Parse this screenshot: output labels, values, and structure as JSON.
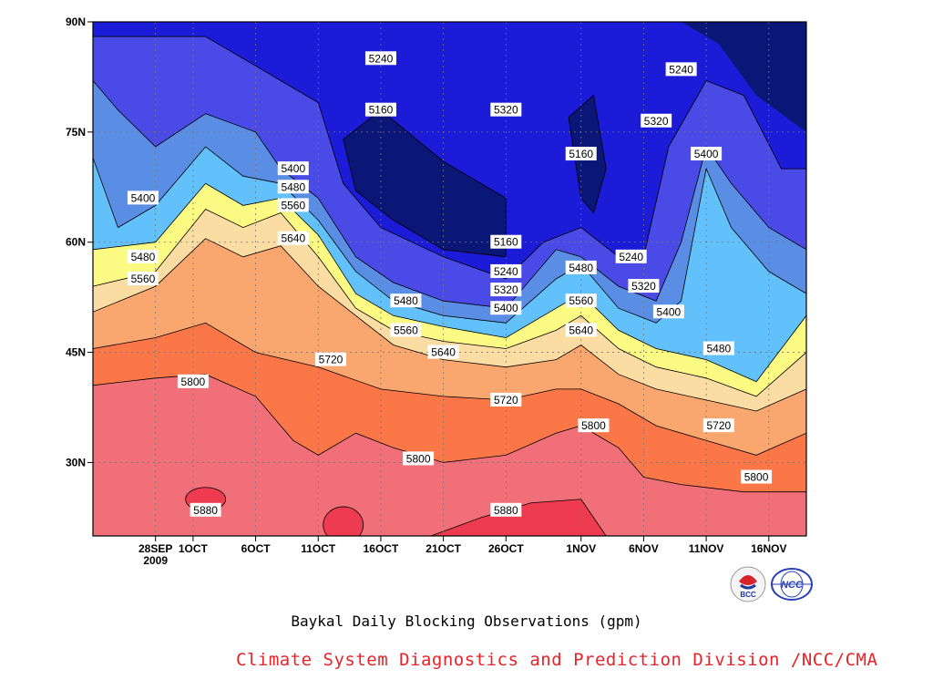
{
  "chart_data": {
    "type": "heatmap",
    "subtype": "filled-contour",
    "title": "Baykal Daily Blocking Observations (gpm)",
    "xlabel": "",
    "ylabel": "",
    "x_ticks": [
      "28SEP\n2009",
      "1OCT",
      "6OCT",
      "11OCT",
      "16OCT",
      "21OCT",
      "26OCT",
      "1NOV",
      "6NOV",
      "11NOV",
      "16NOV"
    ],
    "y_ticks": [
      "30N",
      "45N",
      "60N",
      "75N",
      "90N"
    ],
    "xlim": [
      "2009-09-23",
      "2009-11-19"
    ],
    "ylim": [
      20,
      90
    ],
    "contour_levels": [
      5160,
      5240,
      5320,
      5400,
      5480,
      5560,
      5640,
      5720,
      5800,
      5880
    ],
    "colors": {
      "lt5160": "#0b1777",
      "5160_5240": "#1b1bd8",
      "5240_5320": "#4a4ae6",
      "5320_5400": "#5a8ee4",
      "5400_5480": "#62c1fb",
      "5480_5560": "#fbfb84",
      "5560_5640": "#fbdda3",
      "5640_5720": "#faa66f",
      "5720_5800": "#fb7747",
      "5800_5880": "#f16f79",
      "gt5880": "#ef3b4f"
    },
    "boundaries": [
      {
        "level": 5800,
        "points": [
          [
            "2009-09-23",
            40.5
          ],
          [
            "2009-09-28",
            41.5
          ],
          [
            "2009-10-02",
            42
          ],
          [
            "2009-10-06",
            39
          ],
          [
            "2009-10-09",
            33
          ],
          [
            "2009-10-11",
            31
          ],
          [
            "2009-10-14",
            34
          ],
          [
            "2009-10-17",
            32
          ],
          [
            "2009-10-21",
            30
          ],
          [
            "2009-10-26",
            31
          ],
          [
            "2009-10-30",
            34
          ],
          [
            "2009-11-01",
            35
          ],
          [
            "2009-11-04",
            32
          ],
          [
            "2009-11-06",
            28
          ],
          [
            "2009-11-09",
            27
          ],
          [
            "2009-11-14",
            26
          ],
          [
            "2009-11-19",
            26
          ]
        ]
      },
      {
        "level": 5720,
        "points": [
          [
            "2009-09-23",
            45.5
          ],
          [
            "2009-09-28",
            47
          ],
          [
            "2009-10-02",
            49
          ],
          [
            "2009-10-06",
            45
          ],
          [
            "2009-10-11",
            43
          ],
          [
            "2009-10-16",
            40
          ],
          [
            "2009-10-21",
            39
          ],
          [
            "2009-10-26",
            38.5
          ],
          [
            "2009-10-30",
            40
          ],
          [
            "2009-11-01",
            40
          ],
          [
            "2009-11-04",
            38
          ],
          [
            "2009-11-07",
            35
          ],
          [
            "2009-11-11",
            33
          ],
          [
            "2009-11-15",
            31
          ],
          [
            "2009-11-19",
            34
          ]
        ]
      },
      {
        "level": 5640,
        "points": [
          [
            "2009-09-23",
            50.5
          ],
          [
            "2009-09-28",
            54
          ],
          [
            "2009-10-02",
            60.5
          ],
          [
            "2009-10-05",
            58
          ],
          [
            "2009-10-08",
            59.5
          ],
          [
            "2009-10-11",
            54
          ],
          [
            "2009-10-14",
            50
          ],
          [
            "2009-10-17",
            46
          ],
          [
            "2009-10-21",
            44
          ],
          [
            "2009-10-26",
            43
          ],
          [
            "2009-10-30",
            44
          ],
          [
            "2009-11-01",
            46
          ],
          [
            "2009-11-04",
            42
          ],
          [
            "2009-11-07",
            40
          ],
          [
            "2009-11-11",
            38.5
          ],
          [
            "2009-11-15",
            37
          ],
          [
            "2009-11-19",
            40
          ]
        ]
      },
      {
        "level": 5560,
        "points": [
          [
            "2009-09-23",
            54
          ],
          [
            "2009-09-28",
            56
          ],
          [
            "2009-10-02",
            64.5
          ],
          [
            "2009-10-05",
            62
          ],
          [
            "2009-10-08",
            64
          ],
          [
            "2009-10-11",
            58
          ],
          [
            "2009-10-14",
            51
          ],
          [
            "2009-10-17",
            48
          ],
          [
            "2009-10-21",
            46.5
          ],
          [
            "2009-10-26",
            45.5
          ],
          [
            "2009-10-30",
            48
          ],
          [
            "2009-11-01",
            50
          ],
          [
            "2009-11-04",
            45.5
          ],
          [
            "2009-11-07",
            43
          ],
          [
            "2009-11-11",
            41.5
          ],
          [
            "2009-11-15",
            39
          ],
          [
            "2009-11-19",
            45
          ]
        ]
      },
      {
        "level": 5480,
        "points": [
          [
            "2009-09-23",
            59
          ],
          [
            "2009-09-28",
            60
          ],
          [
            "2009-10-02",
            68
          ],
          [
            "2009-10-05",
            65
          ],
          [
            "2009-10-08",
            66
          ],
          [
            "2009-10-11",
            61
          ],
          [
            "2009-10-14",
            53
          ],
          [
            "2009-10-17",
            50
          ],
          [
            "2009-10-21",
            48.5
          ],
          [
            "2009-10-26",
            47
          ],
          [
            "2009-10-30",
            51
          ],
          [
            "2009-11-01",
            53
          ],
          [
            "2009-11-04",
            48
          ],
          [
            "2009-11-07",
            45.5
          ],
          [
            "2009-11-11",
            44
          ],
          [
            "2009-11-15",
            41
          ],
          [
            "2009-11-19",
            50
          ]
        ]
      },
      {
        "level": 5400,
        "points": [
          [
            "2009-09-23",
            71.5
          ],
          [
            "2009-09-25",
            62
          ],
          [
            "2009-09-28",
            65
          ],
          [
            "2009-10-02",
            73
          ],
          [
            "2009-10-05",
            69
          ],
          [
            "2009-10-08",
            68
          ],
          [
            "2009-10-11",
            63
          ],
          [
            "2009-10-14",
            56
          ],
          [
            "2009-10-17",
            52
          ],
          [
            "2009-10-21",
            50
          ],
          [
            "2009-10-26",
            49
          ],
          [
            "2009-10-30",
            55
          ],
          [
            "2009-11-01",
            57
          ],
          [
            "2009-11-04",
            51
          ],
          [
            "2009-11-07",
            49
          ],
          [
            "2009-11-09",
            52
          ],
          [
            "2009-11-11",
            70
          ],
          [
            "2009-11-13",
            62
          ],
          [
            "2009-11-16",
            56
          ],
          [
            "2009-11-19",
            53
          ]
        ]
      },
      {
        "level": 5320,
        "points": [
          [
            "2009-09-23",
            82
          ],
          [
            "2009-09-25",
            78
          ],
          [
            "2009-09-28",
            73
          ],
          [
            "2009-10-02",
            77.5
          ],
          [
            "2009-10-06",
            75
          ],
          [
            "2009-10-08",
            70
          ],
          [
            "2009-10-11",
            66
          ],
          [
            "2009-10-14",
            58
          ],
          [
            "2009-10-17",
            54.5
          ],
          [
            "2009-10-21",
            52
          ],
          [
            "2009-10-26",
            51
          ],
          [
            "2009-10-30",
            59
          ],
          [
            "2009-11-01",
            58
          ],
          [
            "2009-11-04",
            54
          ],
          [
            "2009-11-07",
            52
          ],
          [
            "2009-11-09",
            60
          ],
          [
            "2009-11-11",
            73
          ],
          [
            "2009-11-13",
            68
          ],
          [
            "2009-11-16",
            62
          ],
          [
            "2009-11-19",
            59
          ]
        ]
      },
      {
        "level": 5240,
        "points": [
          [
            "2009-09-23",
            88
          ],
          [
            "2009-10-02",
            88
          ],
          [
            "2009-10-06",
            84
          ],
          [
            "2009-10-08",
            82
          ],
          [
            "2009-10-11",
            79
          ],
          [
            "2009-10-13",
            68
          ],
          [
            "2009-10-16",
            62
          ],
          [
            "2009-10-21",
            58
          ],
          [
            "2009-10-26",
            55
          ],
          [
            "2009-10-29",
            60
          ],
          [
            "2009-11-01",
            62
          ],
          [
            "2009-11-04",
            58
          ],
          [
            "2009-11-06",
            58
          ],
          [
            "2009-11-08",
            73
          ],
          [
            "2009-11-11",
            82
          ],
          [
            "2009-11-14",
            80
          ],
          [
            "2009-11-17",
            70
          ],
          [
            "2009-11-19",
            70
          ]
        ]
      },
      {
        "level": 5160,
        "points": [
          [
            "2009-10-13",
            74
          ],
          [
            "2009-10-16",
            78
          ],
          [
            "2009-10-21",
            71
          ],
          [
            "2009-10-26",
            66
          ],
          [
            "2009-10-26",
            58
          ],
          [
            "2009-10-21",
            59
          ],
          [
            "2009-10-17",
            63
          ],
          [
            "2009-10-14",
            67
          ]
        ]
      }
    ],
    "contour_labels": [
      {
        "text": "5240",
        "x": "2009-10-16",
        "y": 85
      },
      {
        "text": "5160",
        "x": "2009-10-16",
        "y": 78
      },
      {
        "text": "5320",
        "x": "2009-10-26",
        "y": 78
      },
      {
        "text": "5400",
        "x": "2009-09-27",
        "y": 66
      },
      {
        "text": "5480",
        "x": "2009-09-27",
        "y": 58
      },
      {
        "text": "5560",
        "x": "2009-09-27",
        "y": 55
      },
      {
        "text": "5400",
        "x": "2009-10-09",
        "y": 70
      },
      {
        "text": "5480",
        "x": "2009-10-09",
        "y": 67.5
      },
      {
        "text": "5560",
        "x": "2009-10-09",
        "y": 65
      },
      {
        "text": "5640",
        "x": "2009-10-09",
        "y": 60.5
      },
      {
        "text": "5160",
        "x": "2009-10-26",
        "y": 60
      },
      {
        "text": "5240",
        "x": "2009-10-26",
        "y": 56
      },
      {
        "text": "5320",
        "x": "2009-10-26",
        "y": 53.5
      },
      {
        "text": "5400",
        "x": "2009-10-26",
        "y": 51
      },
      {
        "text": "5480",
        "x": "2009-10-18",
        "y": 52
      },
      {
        "text": "5560",
        "x": "2009-10-18",
        "y": 48
      },
      {
        "text": "5640",
        "x": "2009-10-21",
        "y": 45
      },
      {
        "text": "5720",
        "x": "2009-10-12",
        "y": 44
      },
      {
        "text": "5800",
        "x": "2009-10-01",
        "y": 41
      },
      {
        "text": "5720",
        "x": "2009-10-26",
        "y": 38.5
      },
      {
        "text": "5800",
        "x": "2009-10-19",
        "y": 30.5
      },
      {
        "text": "5880",
        "x": "2009-10-02",
        "y": 23.5
      },
      {
        "text": "5880",
        "x": "2009-10-26",
        "y": 23.5
      },
      {
        "text": "5160",
        "x": "2009-11-01",
        "y": 72
      },
      {
        "text": "5240",
        "x": "2009-11-05",
        "y": 58
      },
      {
        "text": "5320",
        "x": "2009-11-06",
        "y": 54
      },
      {
        "text": "5320",
        "x": "2009-11-07",
        "y": 76.5
      },
      {
        "text": "5240",
        "x": "2009-11-09",
        "y": 83.5
      },
      {
        "text": "5400",
        "x": "2009-11-11",
        "y": 72
      },
      {
        "text": "5480",
        "x": "2009-11-01",
        "y": 56.5
      },
      {
        "text": "5560",
        "x": "2009-11-01",
        "y": 52
      },
      {
        "text": "5640",
        "x": "2009-11-01",
        "y": 48
      },
      {
        "text": "5400",
        "x": "2009-11-08",
        "y": 50.5
      },
      {
        "text": "5800",
        "x": "2009-11-02",
        "y": 35
      },
      {
        "text": "5480",
        "x": "2009-11-12",
        "y": 45.5
      },
      {
        "text": "5720",
        "x": "2009-11-12",
        "y": 35
      },
      {
        "text": "5800",
        "x": "2009-11-15",
        "y": 28
      }
    ]
  },
  "subtitle": "Climate System Diagnostics and Prediction Division /NCC/CMA",
  "logos": {
    "bcc_text": "BCC",
    "ncc_text": "NCC"
  }
}
